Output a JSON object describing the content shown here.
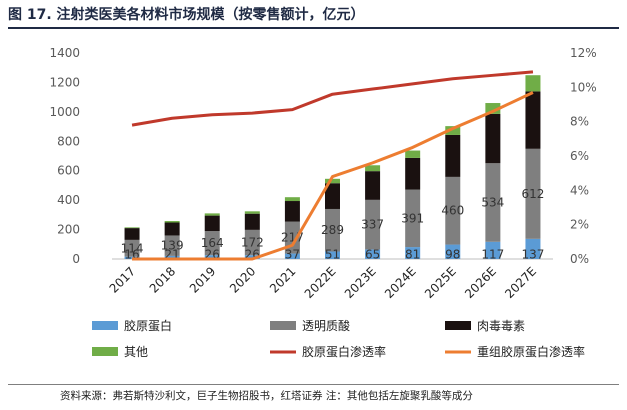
{
  "title": "图 17. 注射类医美各材料市场规模（按零售额计，亿元）",
  "source": "资料来源：弗若斯特沙利文，巨子生物招股书，红塔证券    注：其他包括左旋聚乳酸等成分",
  "chart_data": {
    "type": "bar",
    "stacked": true,
    "categories": [
      "2017",
      "2018",
      "2019",
      "2020",
      "2021",
      "2022E",
      "2023E",
      "2024E",
      "2025E",
      "2026E",
      "2027E"
    ],
    "ylim_left": [
      0,
      1400
    ],
    "yticks_left": [
      "0",
      "200",
      "400",
      "600",
      "800",
      "1000",
      "1200",
      "1400"
    ],
    "ylim_right": [
      0,
      12
    ],
    "yticks_right": [
      "0%",
      "2%",
      "4%",
      "6%",
      "8%",
      "10%",
      "12%"
    ],
    "grid": false,
    "legend_position": "bottom",
    "series": [
      {
        "name": "胶原蛋白",
        "kind": "bar",
        "color": "#5b9bd5",
        "values": [
          16,
          21,
          26,
          26,
          37,
          51,
          65,
          81,
          98,
          117,
          137
        ],
        "labels": [
          "16",
          "21",
          "26",
          "26",
          "37",
          "51",
          "65",
          "81",
          "98",
          "117",
          "137"
        ]
      },
      {
        "name": "透明质酸",
        "kind": "bar",
        "color": "#7f7f7f",
        "values": [
          114,
          139,
          164,
          172,
          217,
          289,
          337,
          391,
          460,
          534,
          612
        ],
        "labels": [
          "114",
          "139",
          "164",
          "172",
          "217",
          "289",
          "337",
          "391",
          "460",
          "534",
          "612"
        ]
      },
      {
        "name": "肉毒毒素",
        "kind": "bar",
        "color": "#1a1110",
        "values": [
          80,
          88,
          105,
          110,
          140,
          175,
          195,
          215,
          285,
          335,
          390
        ]
      },
      {
        "name": "其他",
        "kind": "bar",
        "color": "#70ad47",
        "values": [
          5,
          10,
          15,
          16,
          26,
          30,
          40,
          50,
          60,
          74,
          110
        ]
      },
      {
        "name": "胶原蛋白渗透率",
        "kind": "line",
        "axis": "right",
        "color": "#c0392b",
        "values": [
          7.8,
          8.2,
          8.4,
          8.5,
          8.7,
          9.6,
          9.9,
          10.2,
          10.5,
          10.7,
          10.9
        ]
      },
      {
        "name": "重组胶原蛋白渗透率",
        "kind": "line",
        "axis": "right",
        "color": "#ed7d31",
        "values": [
          0,
          0,
          0,
          0,
          0.8,
          4.8,
          5.6,
          6.5,
          7.6,
          8.6,
          9.7
        ]
      }
    ]
  }
}
